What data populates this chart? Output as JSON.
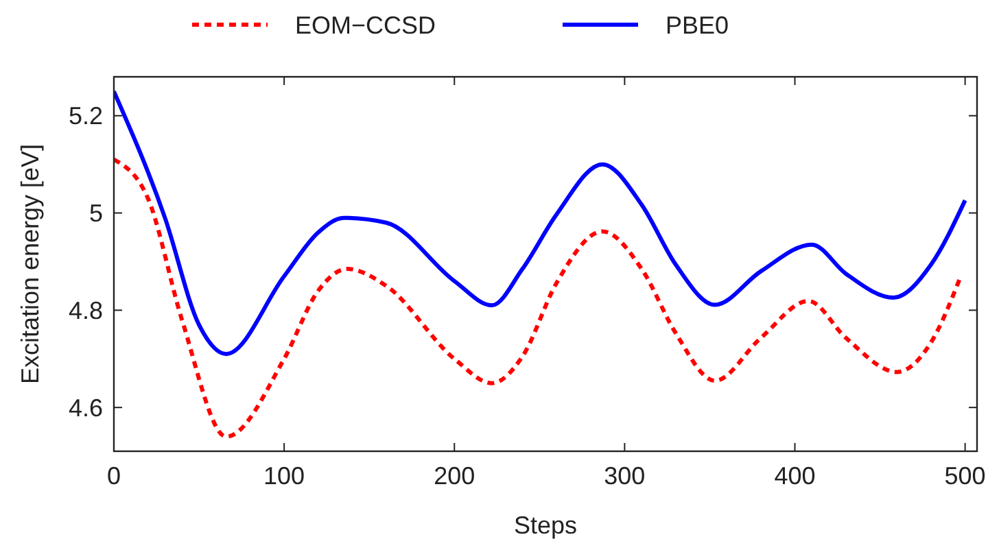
{
  "chart_data": {
    "type": "line",
    "xlabel": "Steps",
    "ylabel": "Excitation energy [eV]",
    "xlim": [
      0,
      507
    ],
    "ylim": [
      4.51,
      5.28
    ],
    "xticks": [
      0,
      100,
      200,
      300,
      400,
      500
    ],
    "yticks": [
      4.6,
      4.8,
      5,
      5.2
    ],
    "grid": false,
    "legend": "top",
    "series": [
      {
        "name": "EOM−CCSD",
        "color": "#ff0000",
        "line_style": "dashed",
        "x": [
          0,
          20,
          40,
          66,
          100,
          120,
          137,
          160,
          200,
          222,
          240,
          260,
          287,
          310,
          330,
          353,
          380,
          408,
          430,
          460,
          480,
          497
        ],
        "values": [
          5.11,
          5.03,
          4.78,
          4.54,
          4.7,
          4.84,
          4.885,
          4.85,
          4.7,
          4.65,
          4.705,
          4.856,
          4.962,
          4.885,
          4.753,
          4.655,
          4.743,
          4.819,
          4.743,
          4.673,
          4.734,
          4.866
        ]
      },
      {
        "name": "PBE0",
        "color": "#0000ff",
        "line_style": "solid",
        "x": [
          0,
          30,
          50,
          66,
          100,
          120,
          135,
          160,
          200,
          222,
          240,
          260,
          287,
          310,
          330,
          353,
          380,
          410,
          430,
          458,
          480,
          500
        ],
        "values": [
          5.25,
          4.99,
          4.77,
          4.71,
          4.87,
          4.96,
          4.99,
          4.98,
          4.86,
          4.81,
          4.885,
          4.997,
          5.1,
          5.017,
          4.894,
          4.811,
          4.88,
          4.935,
          4.875,
          4.826,
          4.894,
          5.026
        ]
      }
    ]
  }
}
